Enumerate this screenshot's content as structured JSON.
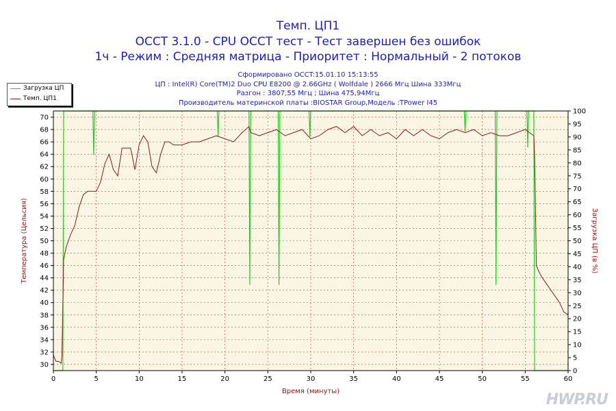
{
  "header": {
    "title1": "Темп. ЦП1",
    "title2": "OCCT 3.1.0 - CPU OCCT тест - Тест завершен без ошибок",
    "title3": "1ч - Режим : Средняя матрица - Приоритет : Нормальный - 2 потоков",
    "info1": "Сформировано OCCT:15.01.10 15:13:55",
    "info2": "ЦП : Intel(R) Core(TM)2 Duo CPU E8200 @ 2.66GHz ( Wolfdale ) 2666 Мгц Шина 333Мгц",
    "info3": "Разгон : 3807,55 Мгц ; Шина 475,94Мгц",
    "info4": "Производитель материнской платы :BIOSTAR Group,Модель :TPower I45"
  },
  "legend": {
    "items": [
      {
        "label": "Загрузка ЦП",
        "color": "#22cc22"
      },
      {
        "label": "Темп. ЦП1",
        "color": "#8b1a1a"
      }
    ]
  },
  "watermark": "HWP.RU",
  "colors": {
    "plot_bg": "#fbf6e4",
    "grid": "#cc3333",
    "temp": "#8b1a1a",
    "load": "#22cc22"
  },
  "chart_data": {
    "type": "line",
    "xlabel": "Время (минуты)",
    "ylabel_left": "Температура (Цельсия)",
    "ylabel_right": "Загрузка ЦП (в %)",
    "xlim": [
      0,
      60
    ],
    "ylim_left": [
      29,
      71
    ],
    "ylim_right": [
      0,
      100
    ],
    "x_ticks": [
      0,
      5,
      10,
      15,
      20,
      25,
      30,
      35,
      40,
      45,
      50,
      55,
      60
    ],
    "y_left_ticks": [
      30,
      32,
      34,
      36,
      38,
      40,
      42,
      44,
      46,
      48,
      50,
      52,
      54,
      56,
      58,
      60,
      62,
      64,
      66,
      68,
      70
    ],
    "y_right_ticks": [
      0,
      5,
      10,
      15,
      20,
      25,
      30,
      35,
      40,
      45,
      50,
      55,
      60,
      65,
      70,
      75,
      80,
      85,
      90,
      95,
      100
    ],
    "grid": true,
    "series": [
      {
        "name": "Темп. ЦП1",
        "axis": "left",
        "x": [
          0,
          0.3,
          0.6,
          0.9,
          1.0,
          1.2,
          1.5,
          2.0,
          2.5,
          3.0,
          3.5,
          4.0,
          4.5,
          5.0,
          5.5,
          6.0,
          6.5,
          7.0,
          7.5,
          8.0,
          8.5,
          9.0,
          9.5,
          10.0,
          10.5,
          11.0,
          11.5,
          12.0,
          12.5,
          13.0,
          13.5,
          14.0,
          15.0,
          16.0,
          17.0,
          18.0,
          19.0,
          20.0,
          21.0,
          22.0,
          22.8,
          23.0,
          24.0,
          25.0,
          26.0,
          27.0,
          28.0,
          29.0,
          30.0,
          31.0,
          32.0,
          33.0,
          34.0,
          35.0,
          36.0,
          37.0,
          38.0,
          39.0,
          40.0,
          41.0,
          42.0,
          43.0,
          44.0,
          45.0,
          46.0,
          47.0,
          48.0,
          49.0,
          50.0,
          51.0,
          52.0,
          53.0,
          54.0,
          55.0,
          55.5,
          56.0,
          56.1,
          56.3,
          56.6,
          57.0,
          57.5,
          58.0,
          58.5,
          59.0,
          59.5,
          60.0
        ],
        "y": [
          31.5,
          30.5,
          30.5,
          30.2,
          31.5,
          47.0,
          49.0,
          51.0,
          52.5,
          55.5,
          57.5,
          58.0,
          58.0,
          58.0,
          59.5,
          62.5,
          64.0,
          61.5,
          60.5,
          65.0,
          65.0,
          65.0,
          61.5,
          65.5,
          67.0,
          66.0,
          62.0,
          61.0,
          64.0,
          66.0,
          66.0,
          65.5,
          65.5,
          66.0,
          66.0,
          66.5,
          67.0,
          66.5,
          66.0,
          67.5,
          68.5,
          67.5,
          67.0,
          67.5,
          68.0,
          67.0,
          67.5,
          68.0,
          66.5,
          67.0,
          68.0,
          68.5,
          67.5,
          68.5,
          67.0,
          68.0,
          67.0,
          67.5,
          66.5,
          68.0,
          67.0,
          68.0,
          67.0,
          66.5,
          67.5,
          68.0,
          67.5,
          68.0,
          67.0,
          67.5,
          67.0,
          67.0,
          67.5,
          68.0,
          67.5,
          67.0,
          64.0,
          46.0,
          45.0,
          44.0,
          43.0,
          42.0,
          41.0,
          40.0,
          38.5,
          38.0
        ]
      },
      {
        "name": "Загрузка ЦП",
        "axis": "right",
        "x": [
          0,
          1.1,
          1.2,
          1.3,
          4.6,
          4.7,
          4.8,
          19.1,
          19.2,
          19.3,
          22.8,
          22.9,
          23.0,
          26.2,
          26.3,
          26.4,
          29.8,
          29.9,
          30.0,
          47.9,
          48.0,
          48.1,
          51.5,
          51.6,
          51.7,
          55.2,
          55.3,
          55.4,
          56.0,
          56.1,
          56.2,
          60.0
        ],
        "y": [
          0,
          0,
          100,
          100,
          100,
          83,
          100,
          100,
          90,
          100,
          100,
          33,
          100,
          100,
          33,
          100,
          100,
          90,
          100,
          100,
          92,
          100,
          100,
          33,
          100,
          100,
          86,
          100,
          100,
          0,
          0,
          0
        ]
      }
    ]
  }
}
